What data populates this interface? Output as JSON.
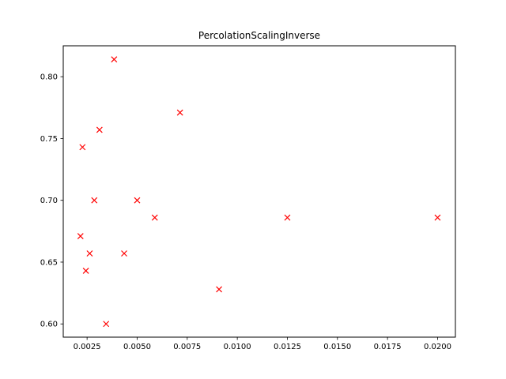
{
  "chart_data": {
    "type": "scatter",
    "title": "PercolationScalingInverse",
    "xlabel": "",
    "ylabel": "",
    "xlim": [
      0.00131,
      0.02089
    ],
    "ylim": [
      0.5893,
      0.825
    ],
    "x_ticks": [
      0.0025,
      0.005,
      0.0075,
      0.01,
      0.0125,
      0.015,
      0.0175,
      0.02
    ],
    "x_tick_labels": [
      "0.0025",
      "0.0050",
      "0.0075",
      "0.0100",
      "0.0125",
      "0.0150",
      "0.0175",
      "0.0200"
    ],
    "y_ticks": [
      0.6,
      0.65,
      0.7,
      0.75,
      0.8
    ],
    "y_tick_labels": [
      "0.60",
      "0.65",
      "0.70",
      "0.75",
      "0.80"
    ],
    "grid": false,
    "marker": "x",
    "color": "#ff0000",
    "points": [
      {
        "x": 0.00385,
        "y": 0.814
      },
      {
        "x": 0.00714,
        "y": 0.771
      },
      {
        "x": 0.00312,
        "y": 0.757
      },
      {
        "x": 0.00227,
        "y": 0.743
      },
      {
        "x": 0.00286,
        "y": 0.7
      },
      {
        "x": 0.005,
        "y": 0.7
      },
      {
        "x": 0.00588,
        "y": 0.686
      },
      {
        "x": 0.0125,
        "y": 0.686
      },
      {
        "x": 0.02,
        "y": 0.686
      },
      {
        "x": 0.00217,
        "y": 0.671
      },
      {
        "x": 0.00263,
        "y": 0.657
      },
      {
        "x": 0.00435,
        "y": 0.657
      },
      {
        "x": 0.00244,
        "y": 0.643
      },
      {
        "x": 0.00909,
        "y": 0.628
      },
      {
        "x": 0.00345,
        "y": 0.6
      }
    ]
  }
}
